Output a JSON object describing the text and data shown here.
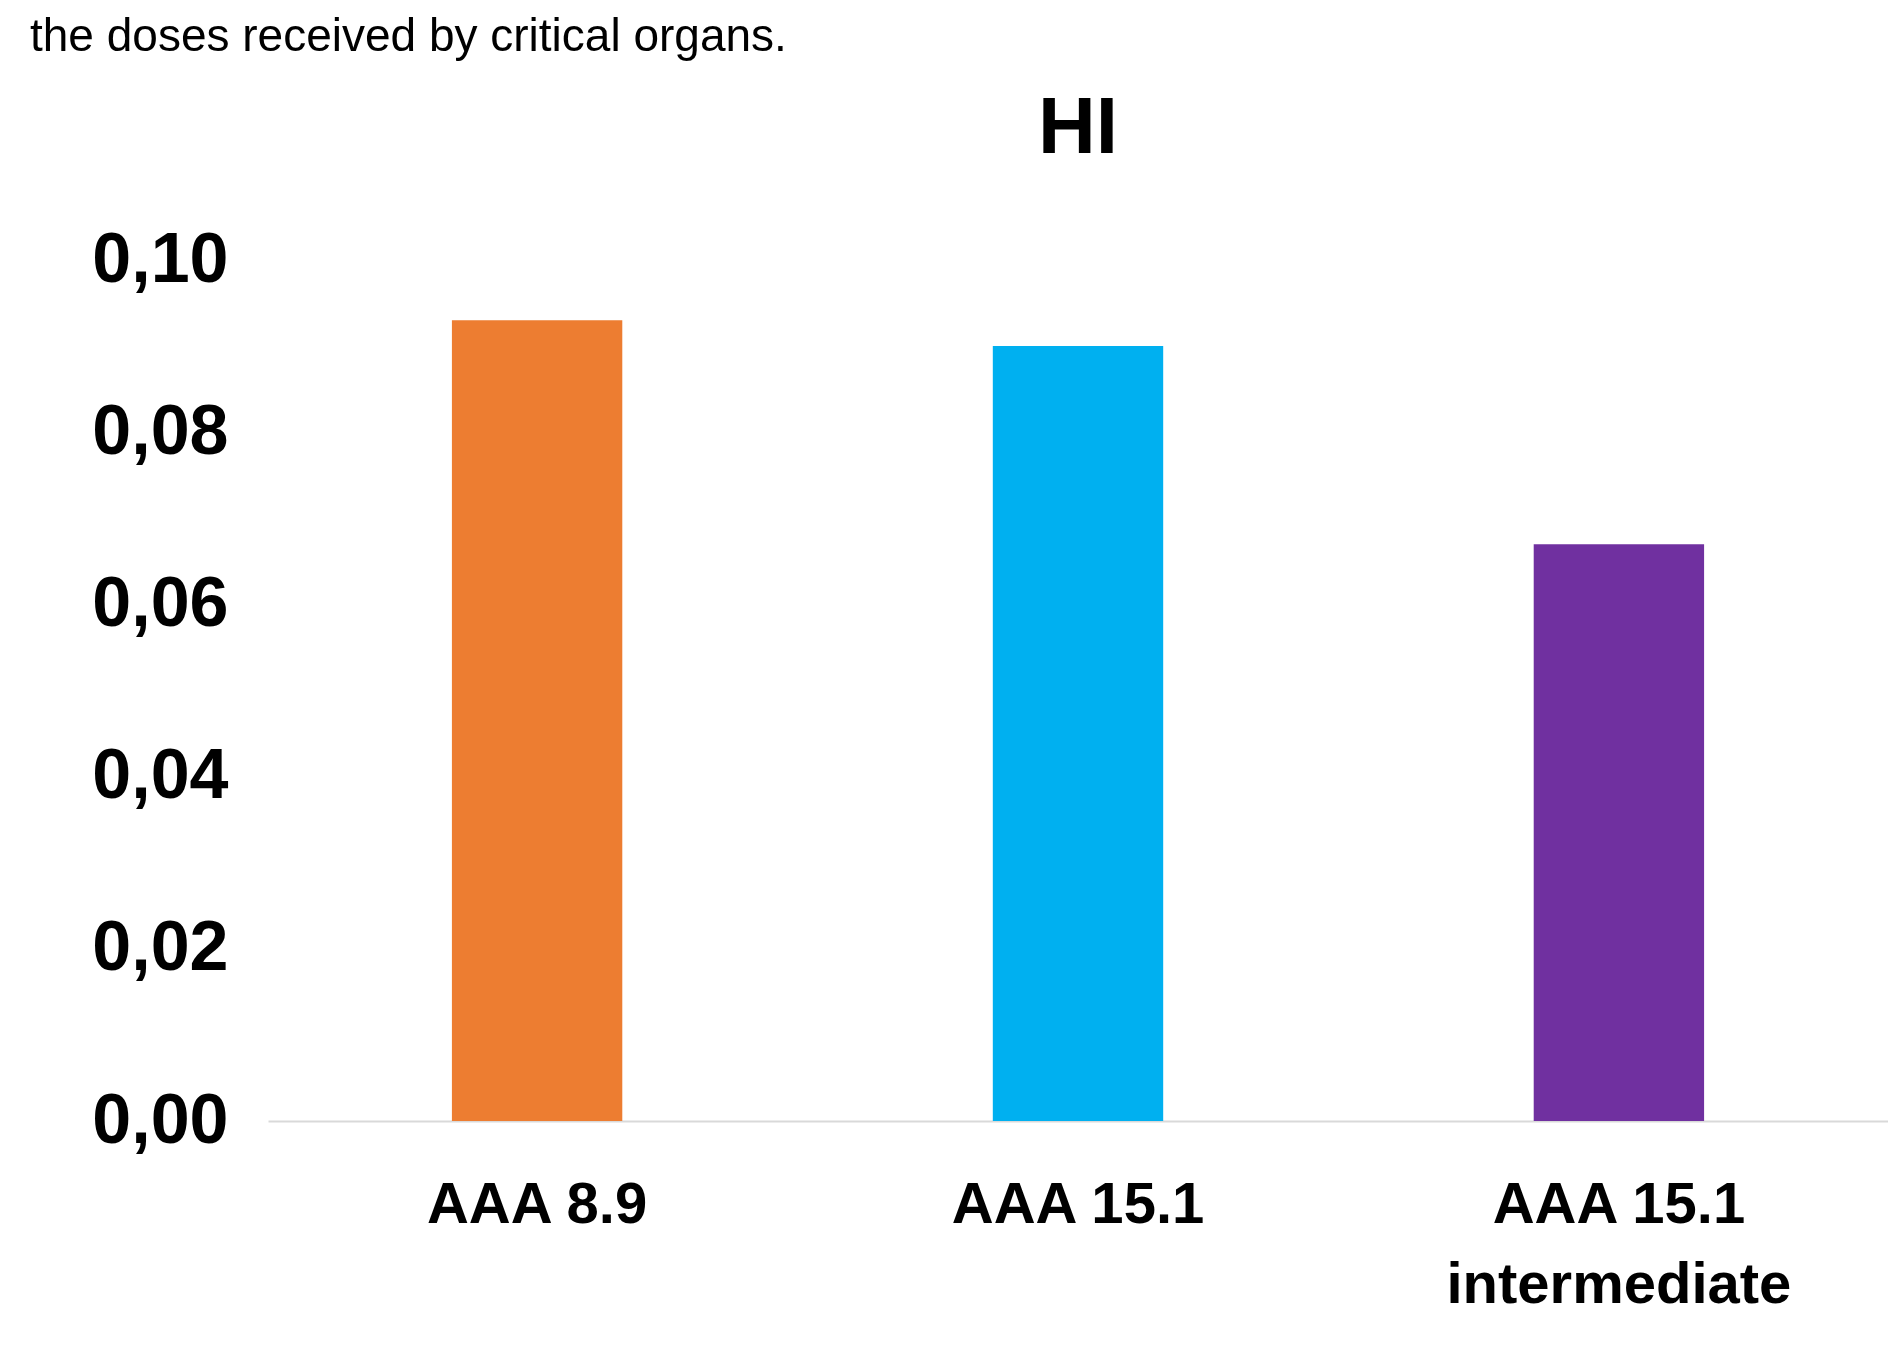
{
  "chart_data": {
    "type": "bar",
    "title": "HI",
    "annotations": [
      "the doses received by critical organs."
    ],
    "categories": [
      "AAA 8.9",
      "AAA 15.1",
      "AAA 15.1 intermediate"
    ],
    "values": [
      0.093,
      0.09,
      0.067
    ],
    "colors": [
      "#ed7d31",
      "#00b0f0",
      "#7030a0"
    ],
    "ylim": [
      0,
      0.1
    ],
    "yticks": [
      {
        "value": 0,
        "label": "0,00"
      },
      {
        "value": 0.02,
        "label": "0,02"
      },
      {
        "value": 0.04,
        "label": "0,04"
      },
      {
        "value": 0.06,
        "label": "0,06"
      },
      {
        "value": 0.08,
        "label": "0,08"
      },
      {
        "value": 0.1,
        "label": "0,10"
      }
    ],
    "grid": false
  }
}
